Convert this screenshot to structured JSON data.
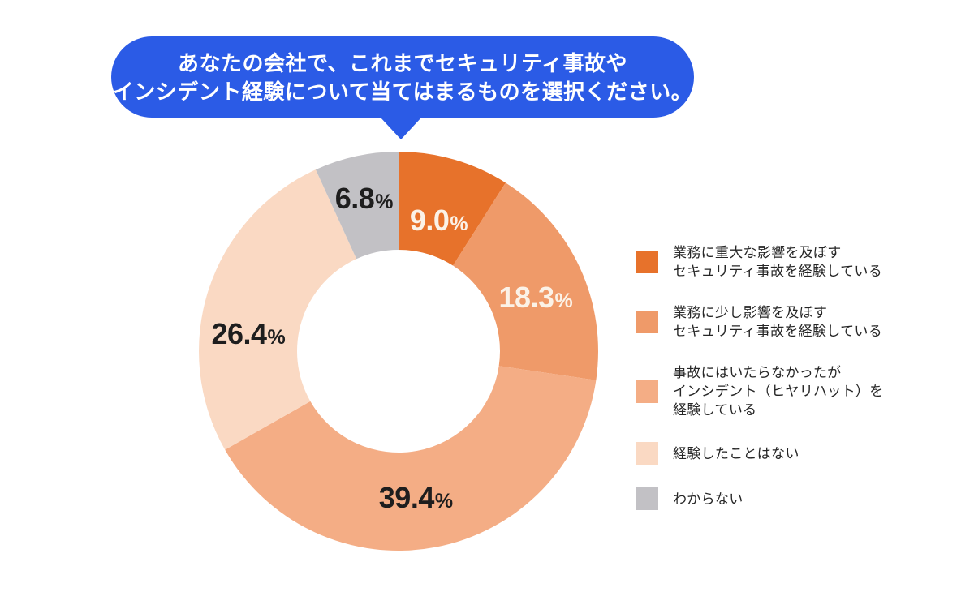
{
  "question_bubble": {
    "lines": [
      "あなたの会社で、これまでセキュリティ事故や",
      "インシデント経験について当てはまるものを選択ください。"
    ],
    "background_color": "#2B5BE6",
    "text_color": "#FFFFFF"
  },
  "chart_data": {
    "type": "pie",
    "variant": "donut",
    "title": "あなたの会社で、これまでセキュリティ事故やインシデント経験について当てはまるものを選択ください。",
    "unit": "%",
    "start_angle_deg": 0,
    "direction": "clockwise",
    "legend_position": "right",
    "background_color": "#FFFFFF",
    "segments": [
      {
        "label": "業務に重大な影響を及ぼすセキュリティ事故を経験している",
        "legend_lines": [
          "業務に重大な影響を及ぼす",
          "セキュリティ事故を経験している"
        ],
        "value": 9.0,
        "display_value": "9.0",
        "color": "#E7722B",
        "value_label_color": "#FBF2E7"
      },
      {
        "label": "業務に少し影響を及ぼすセキュリティ事故を経験している",
        "legend_lines": [
          "業務に少し影響を及ぼす",
          "セキュリティ事故を経験している"
        ],
        "value": 18.3,
        "display_value": "18.3",
        "color": "#EF9A69",
        "value_label_color": "#FBF2E7"
      },
      {
        "label": "事故にはいたらなかったがインシデント（ヒヤリハット）を経験している",
        "legend_lines": [
          "事故にはいたらなかったが",
          "インシデント（ヒヤリハット）を",
          "経験している"
        ],
        "value": 39.4,
        "display_value": "39.4",
        "color": "#F4AD85",
        "value_label_color": "#1E1E1E"
      },
      {
        "label": "経験したことはない",
        "legend_lines": [
          "経験したことはない"
        ],
        "value": 26.4,
        "display_value": "26.4",
        "color": "#FAD9C3",
        "value_label_color": "#1E1E1E"
      },
      {
        "label": "わからない",
        "legend_lines": [
          "わからない"
        ],
        "value": 6.8,
        "display_value": "6.8",
        "color": "#C2C1C5",
        "value_label_color": "#1E1E1E"
      }
    ]
  },
  "legend": {
    "text_color": "#262626"
  }
}
